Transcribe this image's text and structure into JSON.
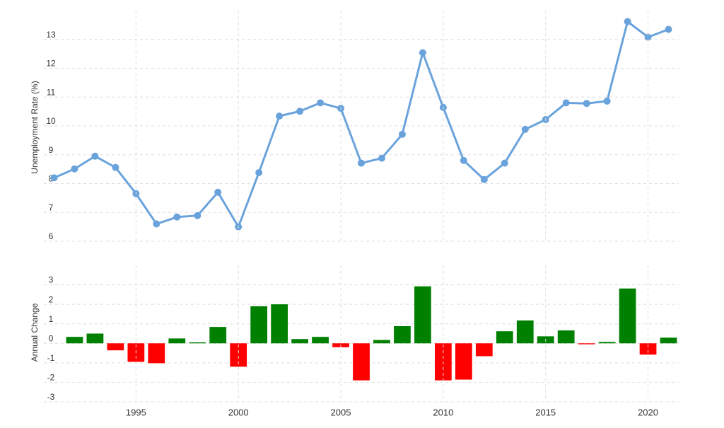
{
  "chart_data": [
    {
      "type": "line",
      "y_label": "Unemployment Rate (%)",
      "x": [
        1991,
        1992,
        1993,
        1994,
        1995,
        1996,
        1997,
        1998,
        1999,
        2000,
        2001,
        2002,
        2003,
        2004,
        2005,
        2006,
        2007,
        2008,
        2009,
        2010,
        2011,
        2012,
        2013,
        2014,
        2015,
        2016,
        2017,
        2018,
        2019,
        2020,
        2021
      ],
      "series": [
        {
          "color": "#6aa3dc",
          "values": [
            8.2,
            8.51,
            8.95,
            8.56,
            7.65,
            6.6,
            6.84,
            6.89,
            7.7,
            6.5,
            8.38,
            10.34,
            10.51,
            10.8,
            10.61,
            8.71,
            8.88,
            9.71,
            12.54,
            10.64,
            8.8,
            8.14,
            8.71,
            9.88,
            10.22,
            10.8,
            10.78,
            10.86,
            13.62,
            13.08,
            13.35
          ]
        }
      ],
      "xlim": [
        1990.5,
        2021.5
      ],
      "ylim": [
        6,
        14
      ],
      "yticks": [
        6,
        7,
        8,
        9,
        10,
        11,
        12,
        13
      ],
      "grid": true
    },
    {
      "type": "bar",
      "y_label": "Annual Change",
      "x": [
        1992,
        1993,
        1994,
        1995,
        1996,
        1997,
        1998,
        1999,
        2000,
        2001,
        2002,
        2003,
        2004,
        2005,
        2006,
        2007,
        2008,
        2009,
        2010,
        2011,
        2012,
        2013,
        2014,
        2015,
        2016,
        2017,
        2018,
        2019,
        2020,
        2021
      ],
      "values": [
        0.33,
        0.5,
        -0.36,
        -0.95,
        -1.02,
        0.25,
        0.05,
        0.84,
        -1.2,
        1.9,
        2.0,
        0.22,
        0.33,
        -0.2,
        -1.9,
        0.17,
        0.88,
        2.92,
        -1.9,
        -1.86,
        -0.66,
        0.62,
        1.17,
        0.36,
        0.66,
        -0.05,
        0.07,
        2.81,
        -0.58,
        0.29
      ],
      "positive_color": "#008000",
      "negative_color": "#ff0000",
      "xlim": [
        1990.5,
        2021.5
      ],
      "ylim": [
        -3,
        4
      ],
      "yticks": [
        -3,
        -2,
        -1,
        0,
        1,
        2,
        3
      ],
      "xticks": [
        1995,
        2000,
        2005,
        2010,
        2015,
        2020
      ],
      "grid": true
    }
  ]
}
